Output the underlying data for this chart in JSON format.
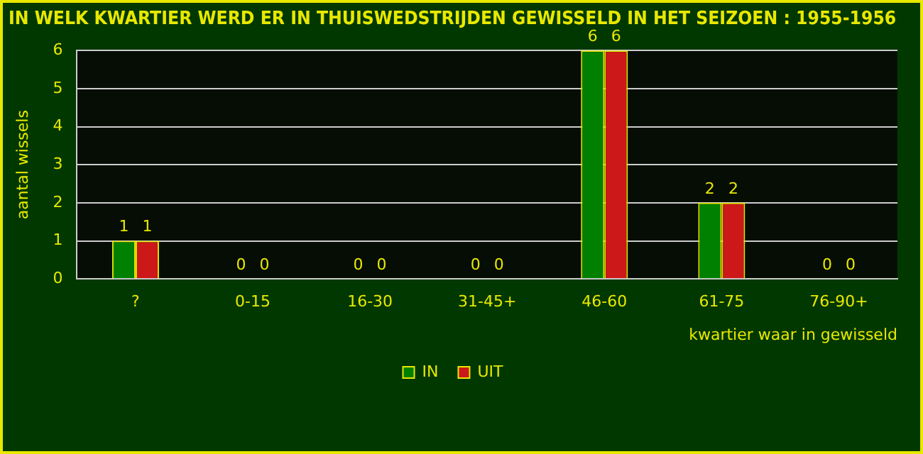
{
  "chart_data": {
    "type": "bar",
    "title": "IN WELK KWARTIER WERD ER IN THUISWEDSTRIJDEN GEWISSELD IN HET SEIZOEN : 1955-1956",
    "xlabel": "kwartier waar in gewisseld",
    "ylabel": "aantal wissels",
    "categories": [
      "?",
      "0-15",
      "16-30",
      "31-45+",
      "46-60",
      "61-75",
      "76-90+"
    ],
    "series": [
      {
        "name": "IN",
        "color": "#008000",
        "values": [
          1,
          0,
          0,
          0,
          6,
          2,
          0
        ]
      },
      {
        "name": "UIT",
        "color": "#cc1818",
        "values": [
          1,
          0,
          0,
          0,
          6,
          2,
          0
        ]
      }
    ],
    "ylim": [
      0,
      6
    ],
    "yticks": [
      0,
      1,
      2,
      3,
      4,
      5,
      6
    ],
    "grid": "y",
    "legend": "bottom",
    "data_labels": true
  }
}
